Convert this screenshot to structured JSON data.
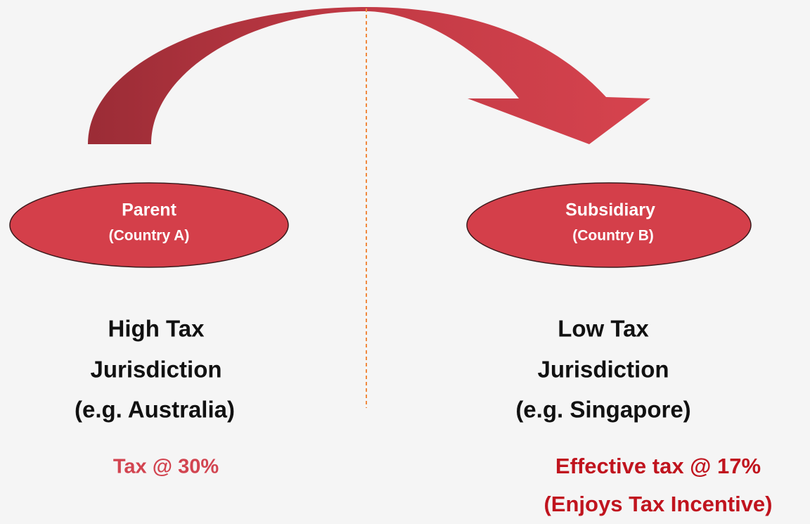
{
  "left": {
    "node": {
      "title": "Parent",
      "subtitle": "(Country A)"
    },
    "description": [
      "High Tax",
      "Jurisdiction",
      "(e.g. Australia)"
    ],
    "tax": [
      "Tax @ 30%"
    ]
  },
  "right": {
    "node": {
      "title": "Subsidiary",
      "subtitle": "(Country B)"
    },
    "description": [
      "Low Tax",
      "Jurisdiction",
      "(e.g. Singapore)"
    ],
    "tax": [
      "Effective tax @ 17%",
      "(Enjoys Tax Incentive)"
    ]
  }
}
